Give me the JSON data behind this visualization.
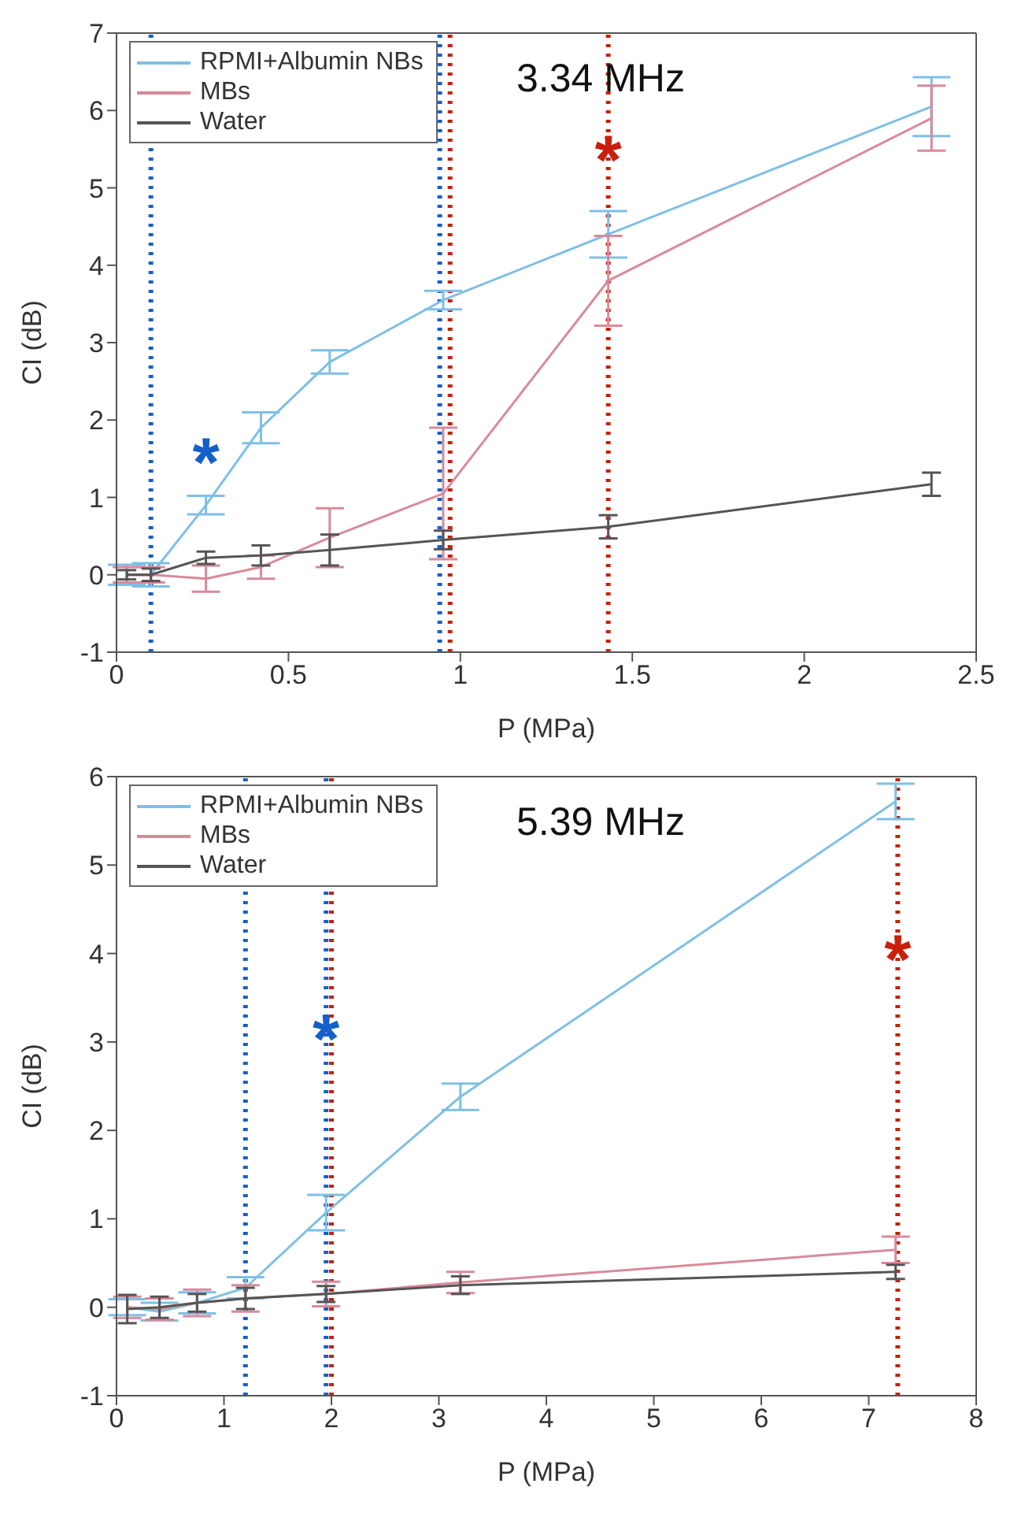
{
  "chart_data": [
    {
      "type": "line",
      "title": "3.34 MHz",
      "xlabel": "P (MPa)",
      "ylabel": "CI (dB)",
      "x": [
        0.03,
        0.1,
        0.26,
        0.42,
        0.62,
        0.95,
        1.43,
        2.37
      ],
      "series": [
        {
          "name": "RPMI+Albumin NBs",
          "color": "#7fbfe6",
          "values": [
            0,
            0,
            0.9,
            1.9,
            2.75,
            3.55,
            4.4,
            6.05
          ],
          "errors": [
            0.13,
            0.15,
            0.12,
            0.2,
            0.15,
            0.12,
            0.3,
            0.38
          ]
        },
        {
          "name": "MBs",
          "color": "#d98a9a",
          "values": [
            0,
            0,
            -0.05,
            0.1,
            0.48,
            1.05,
            3.8,
            5.9
          ],
          "errors": [
            0.1,
            0.1,
            0.17,
            0.15,
            0.38,
            0.85,
            0.58,
            0.42
          ]
        },
        {
          "name": "Water",
          "color": "#555555",
          "values": [
            0,
            0,
            0.22,
            0.25,
            0.32,
            0.45,
            0.62,
            1.17
          ],
          "errors": [
            0.06,
            0.08,
            0.08,
            0.13,
            0.2,
            0.12,
            0.15,
            0.15
          ]
        }
      ],
      "xlim": [
        0,
        2.5
      ],
      "xticks": [
        0,
        0.5,
        1,
        1.5,
        2,
        2.5
      ],
      "ylim": [
        -1,
        7
      ],
      "yticks": [
        -1,
        0,
        1,
        2,
        3,
        4,
        5,
        6,
        7
      ],
      "ref_lines": [
        {
          "axis": "x",
          "value": 0.1,
          "color": "#1560c8",
          "line_style": "dotted"
        },
        {
          "axis": "x",
          "value": 0.94,
          "color": "#1560c8",
          "line_style": "dotted"
        },
        {
          "axis": "x",
          "value": 0.97,
          "color": "#c8200c",
          "line_style": "dotted"
        },
        {
          "axis": "x",
          "value": 1.43,
          "color": "#c8200c",
          "line_style": "dotted"
        }
      ],
      "annotations": [
        {
          "text": "*",
          "x": 0.26,
          "y": 0.9
        },
        {
          "text": "*",
          "x": 1.43,
          "y": 4.8
        }
      ],
      "legend": "top left",
      "grid": false,
      "line_style": "solid"
    },
    {
      "type": "line",
      "title": "5.39 MHz",
      "xlabel": "P (MPa)",
      "ylabel": "CI (dB)",
      "x": [
        0.1,
        0.4,
        0.75,
        1.2,
        1.95,
        3.2,
        7.25
      ],
      "series": [
        {
          "name": "RPMI+Albumin NBs",
          "color": "#7fbfe6",
          "values": [
            0,
            -0.05,
            0.05,
            0.22,
            1.07,
            2.38,
            5.72
          ],
          "errors": [
            0.09,
            0.1,
            0.12,
            0.12,
            0.2,
            0.15,
            0.2
          ]
        },
        {
          "name": "MBs",
          "color": "#d98a9a",
          "values": [
            0,
            -0.02,
            0.05,
            0.1,
            0.15,
            0.28,
            0.65
          ],
          "errors": [
            0.12,
            0.12,
            0.15,
            0.15,
            0.14,
            0.12,
            0.15
          ]
        },
        {
          "name": "Water",
          "color": "#555555",
          "values": [
            -0.02,
            0,
            0.05,
            0.1,
            0.15,
            0.25,
            0.4
          ],
          "errors": [
            0.16,
            0.12,
            0.1,
            0.12,
            0.09,
            0.1,
            0.08
          ]
        }
      ],
      "xlim": [
        0,
        8
      ],
      "xticks": [
        0,
        1,
        2,
        3,
        4,
        5,
        6,
        7,
        8
      ],
      "ylim": [
        -1,
        6
      ],
      "yticks": [
        -1,
        0,
        1,
        2,
        3,
        4,
        5,
        6
      ],
      "ref_lines": [
        {
          "axis": "x",
          "value": 1.2,
          "color": "#1560c8",
          "line_style": "dotted"
        },
        {
          "axis": "x",
          "value": 1.95,
          "color": "#1560c8",
          "line_style": "dotted"
        },
        {
          "axis": "x",
          "value": 2.0,
          "color": "#c8200c",
          "line_style": "dotted"
        },
        {
          "axis": "x",
          "value": 7.27,
          "color": "#c8200c",
          "line_style": "dotted"
        }
      ],
      "annotations": [
        {
          "text": "*",
          "x": 1.95,
          "y": 2.55
        },
        {
          "text": "*",
          "x": 7.27,
          "y": 3.45
        }
      ],
      "legend": "top left",
      "grid": false,
      "line_style": "solid"
    }
  ]
}
